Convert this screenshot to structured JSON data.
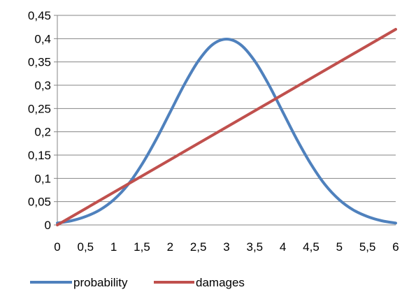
{
  "chart_data": {
    "type": "line",
    "title": "",
    "xlabel": "",
    "ylabel": "",
    "xlim": [
      0,
      6
    ],
    "ylim": [
      0,
      0.45
    ],
    "x_ticks": [
      {
        "value": 0,
        "label": "0"
      },
      {
        "value": 0.5,
        "label": "0,5"
      },
      {
        "value": 1,
        "label": "1"
      },
      {
        "value": 1.5,
        "label": "1,5"
      },
      {
        "value": 2,
        "label": "2"
      },
      {
        "value": 2.5,
        "label": "2,5"
      },
      {
        "value": 3,
        "label": "3"
      },
      {
        "value": 3.5,
        "label": "3,5"
      },
      {
        "value": 4,
        "label": "4"
      },
      {
        "value": 4.5,
        "label": "4,5"
      },
      {
        "value": 5,
        "label": "5"
      },
      {
        "value": 5.5,
        "label": "5,5"
      },
      {
        "value": 6,
        "label": "6"
      }
    ],
    "y_ticks": [
      {
        "value": 0,
        "label": "0"
      },
      {
        "value": 0.05,
        "label": "0,05"
      },
      {
        "value": 0.1,
        "label": "0,1"
      },
      {
        "value": 0.15,
        "label": "0,15"
      },
      {
        "value": 0.2,
        "label": "0,2"
      },
      {
        "value": 0.25,
        "label": "0,25"
      },
      {
        "value": 0.3,
        "label": "0,3"
      },
      {
        "value": 0.35,
        "label": "0,35"
      },
      {
        "value": 0.4,
        "label": "0,4"
      },
      {
        "value": 0.45,
        "label": "0,45"
      }
    ],
    "grid": {
      "horizontal": true,
      "vertical": false
    },
    "legend": {
      "position": "bottom-left"
    },
    "series": [
      {
        "name": "probability",
        "color": "#4F81BD",
        "x": [
          0,
          0.25,
          0.5,
          0.75,
          1,
          1.25,
          1.5,
          1.75,
          2,
          2.25,
          2.5,
          2.75,
          3,
          3.25,
          3.5,
          3.75,
          4,
          4.25,
          4.5,
          4.75,
          5,
          5.25,
          5.5,
          5.75,
          6
        ],
        "y": [
          0.004,
          0.009,
          0.018,
          0.032,
          0.054,
          0.086,
          0.13,
          0.183,
          0.242,
          0.301,
          0.352,
          0.387,
          0.399,
          0.387,
          0.352,
          0.301,
          0.242,
          0.183,
          0.13,
          0.086,
          0.054,
          0.032,
          0.018,
          0.009,
          0.004
        ]
      },
      {
        "name": "damages",
        "color": "#C0504D",
        "x": [
          0,
          6
        ],
        "y": [
          0,
          0.42
        ]
      }
    ]
  }
}
